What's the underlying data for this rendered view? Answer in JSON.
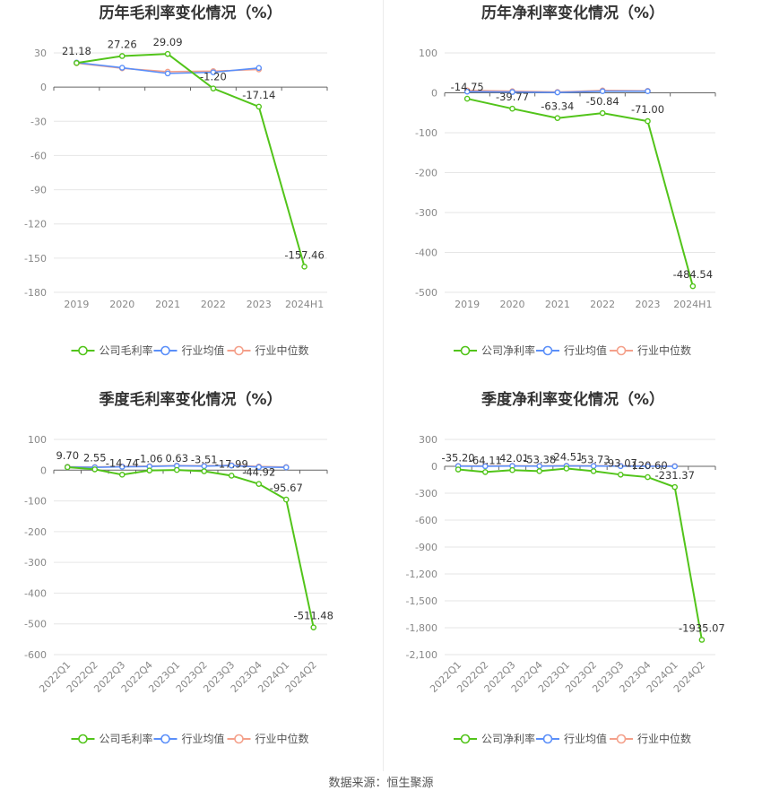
{
  "source_text": "数据来源：恒生聚源",
  "legend_series_names": {
    "gross": [
      "公司毛利率",
      "行业均值",
      "行业中位数"
    ],
    "net": [
      "公司净利率",
      "行业均值",
      "行业中位数"
    ]
  },
  "colors": {
    "company": "#52c41a",
    "mean": "#5b8ff9",
    "median": "#f4a08a"
  },
  "chart_data": [
    {
      "type": "line",
      "title": "历年毛利率变化情况（%）",
      "categories": [
        "2019",
        "2020",
        "2021",
        "2022",
        "2023",
        "2024H1"
      ],
      "ylim": [
        -180,
        30
      ],
      "yticks": [
        "30",
        "0",
        "-30",
        "-60",
        "-90",
        "-120",
        "-150",
        "-180"
      ],
      "ytick_values": [
        30,
        0,
        -30,
        -60,
        -90,
        -120,
        -150,
        -180
      ],
      "xlabel_rotate": false,
      "series": [
        {
          "name": "公司毛利率",
          "values": [
            21.18,
            27.26,
            29.09,
            -1.2,
            -17.14,
            -157.46
          ],
          "labels": [
            "21.18",
            "27.26",
            "29.09",
            "-1.20",
            "-17.14",
            "-157.46"
          ]
        },
        {
          "name": "行业均值",
          "values": [
            21.5,
            17.0,
            12.0,
            13.0,
            16.8,
            null
          ]
        },
        {
          "name": "行业中位数",
          "values": [
            21.0,
            16.5,
            13.5,
            14.0,
            15.5,
            null
          ]
        }
      ],
      "legend_names_key": "gross",
      "legend_position": "bottom"
    },
    {
      "type": "line",
      "title": "历年净利率变化情况（%）",
      "categories": [
        "2019",
        "2020",
        "2021",
        "2022",
        "2023",
        "2024H1"
      ],
      "ylim": [
        -500,
        100
      ],
      "yticks": [
        "100",
        "0",
        "-100",
        "-200",
        "-300",
        "-400",
        "-500"
      ],
      "ytick_values": [
        100,
        0,
        -100,
        -200,
        -300,
        -400,
        -500
      ],
      "xlabel_rotate": false,
      "series": [
        {
          "name": "公司净利率",
          "values": [
            -14.75,
            -39.77,
            -63.34,
            -50.84,
            -71.0,
            -484.54
          ],
          "labels": [
            "-14.75",
            "-39.77",
            "-63.34",
            "-50.84",
            "-71.00",
            "-484.54"
          ]
        },
        {
          "name": "行业均值",
          "values": [
            3.0,
            2.0,
            1.0,
            4.0,
            4.0,
            null
          ]
        },
        {
          "name": "行业中位数",
          "values": [
            6.0,
            4.0,
            2.0,
            6.0,
            5.0,
            null
          ]
        }
      ],
      "legend_names_key": "net",
      "legend_position": "bottom"
    },
    {
      "type": "line",
      "title": "季度毛利率变化情况（%）",
      "categories": [
        "2022Q1",
        "2022Q2",
        "2022Q3",
        "2022Q4",
        "2023Q1",
        "2023Q2",
        "2023Q3",
        "2023Q4",
        "2024Q1",
        "2024Q2"
      ],
      "ylim": [
        -600,
        100
      ],
      "yticks": [
        "100",
        "0",
        "-100",
        "-200",
        "-300",
        "-400",
        "-500",
        "-600"
      ],
      "ytick_values": [
        100,
        0,
        -100,
        -200,
        -300,
        -400,
        -500,
        -600
      ],
      "xlabel_rotate": true,
      "series": [
        {
          "name": "公司毛利率",
          "values": [
            9.7,
            2.55,
            -14.74,
            -1.06,
            0.63,
            -3.51,
            -17.99,
            -44.92,
            -95.67,
            -511.48
          ],
          "labels": [
            "9.70",
            "2.55",
            "-14.74",
            "-1.06",
            "0.63",
            "-3.51",
            "-17.99",
            "-44.92",
            "-95.67",
            "-511.48"
          ]
        },
        {
          "name": "行业均值",
          "values": [
            10.0,
            9.0,
            11.0,
            12.0,
            14.0,
            13.0,
            15.0,
            10.0,
            9.0,
            null
          ]
        },
        {
          "name": "行业中位数",
          "values": [
            11.0,
            10.0,
            12.0,
            13.0,
            15.0,
            14.0,
            16.0,
            12.0,
            10.0,
            null
          ]
        }
      ],
      "legend_names_key": "gross",
      "legend_position": "bottom"
    },
    {
      "type": "line",
      "title": "季度净利率变化情况（%）",
      "categories": [
        "2022Q1",
        "2022Q2",
        "2022Q3",
        "2022Q4",
        "2023Q1",
        "2023Q2",
        "2023Q3",
        "2023Q4",
        "2024Q1",
        "2024Q2"
      ],
      "ylim": [
        -2100,
        300
      ],
      "yticks": [
        "300",
        "0",
        "-300",
        "-600",
        "-900",
        "-1,200",
        "-1,500",
        "-1,800",
        "-2,100"
      ],
      "ytick_values": [
        300,
        0,
        -300,
        -600,
        -900,
        -1200,
        -1500,
        -1800,
        -2100
      ],
      "xlabel_rotate": true,
      "series": [
        {
          "name": "公司净利率",
          "values": [
            -35.2,
            -64.11,
            -42.01,
            -53.38,
            -24.51,
            -53.73,
            -93.07,
            -120.6,
            -231.37,
            -1935.07
          ],
          "labels": [
            "-35.20",
            "-64.11",
            "-42.01",
            "-53.38",
            "-24.51",
            "-53.73",
            "-93.07",
            "-120.60",
            "-231.37",
            "-1935.07"
          ]
        },
        {
          "name": "行业均值",
          "values": [
            2.0,
            1.0,
            3.0,
            2.0,
            4.0,
            3.0,
            2.0,
            1.0,
            0.0,
            null
          ]
        },
        {
          "name": "行业中位数",
          "values": [
            5.0,
            4.0,
            6.0,
            5.0,
            7.0,
            6.0,
            5.0,
            4.0,
            3.0,
            null
          ]
        }
      ],
      "legend_names_key": "net",
      "legend_position": "bottom"
    }
  ]
}
